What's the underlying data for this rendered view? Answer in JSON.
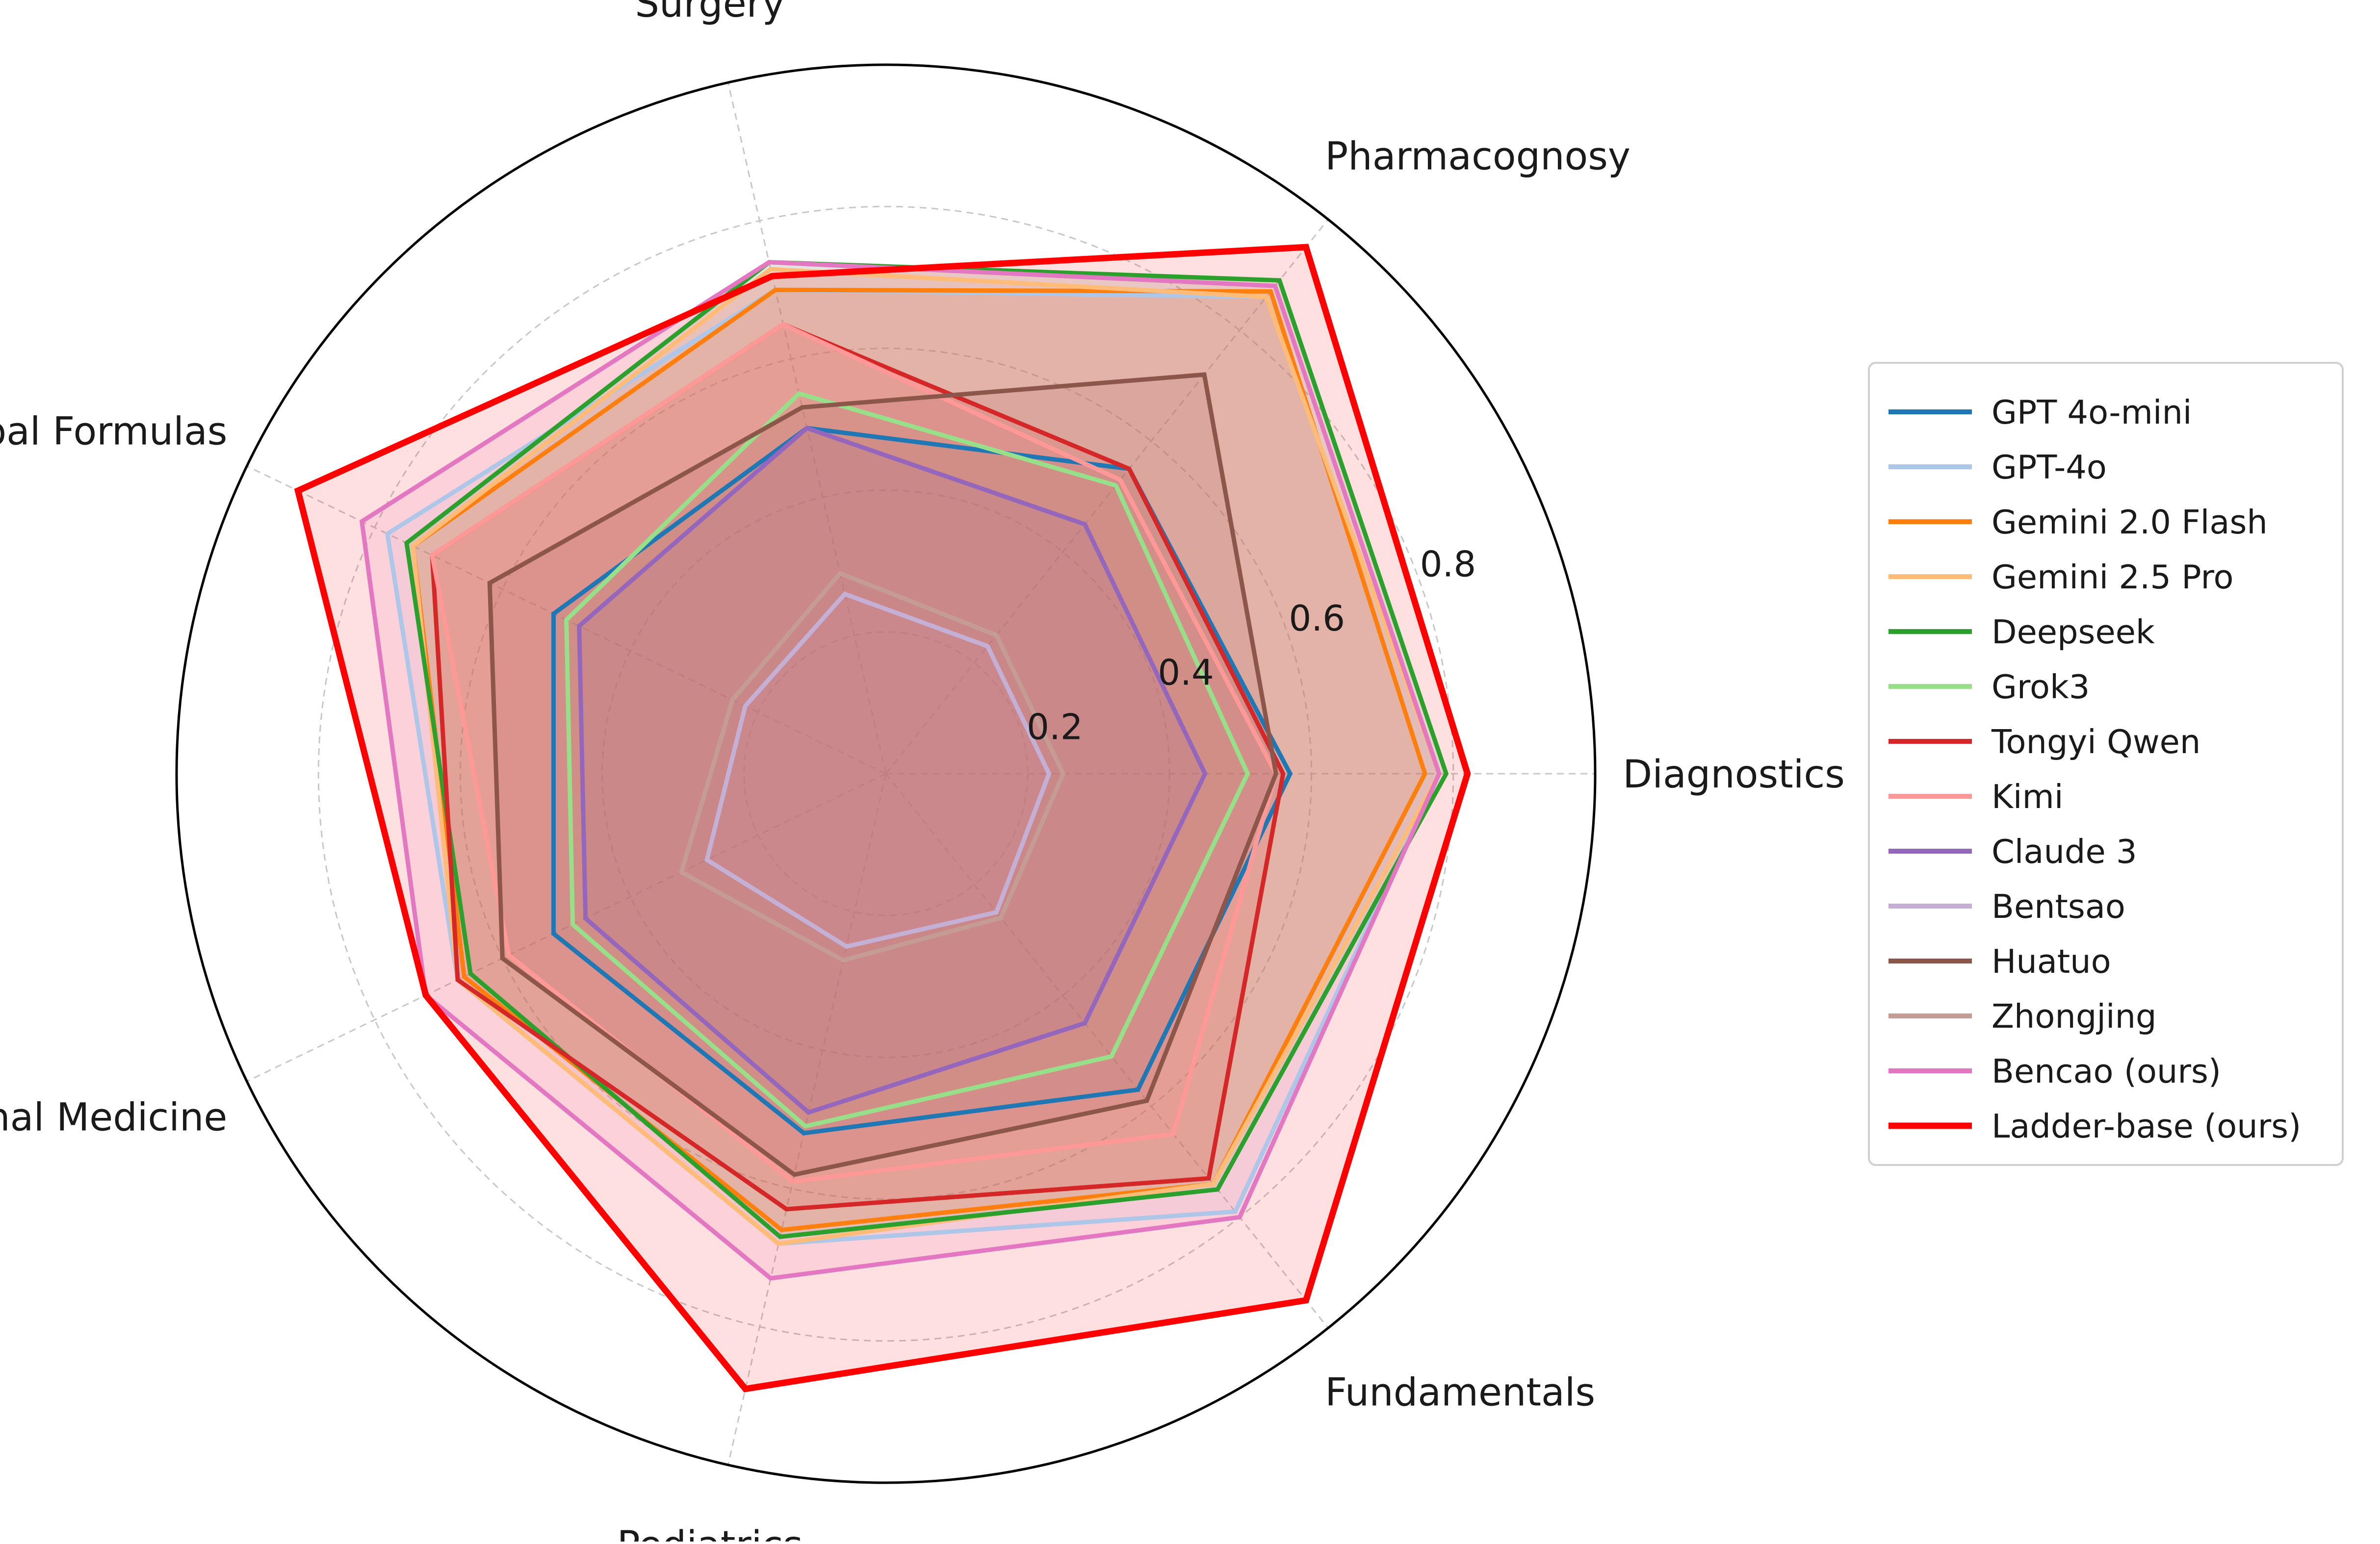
{
  "chart_data": {
    "type": "radar",
    "axes": [
      "Diagnostics",
      "Pharmacognosy",
      "Surgery",
      "Herbal Formulas",
      "Internal Medicine",
      "Pediatrics",
      "Fundamentals"
    ],
    "radial_ticks": [
      "0.2",
      "0.4",
      "0.6",
      "0.8"
    ],
    "radial_tick_values": [
      0.2,
      0.4,
      0.6,
      0.8
    ],
    "rlim": [
      0,
      1.0
    ],
    "grid": true,
    "legend_position": "right",
    "series": [
      {
        "name": "GPT 4o-mini",
        "color": "#1f77b4",
        "values": [
          0.57,
          0.55,
          0.5,
          0.52,
          0.52,
          0.52,
          0.57
        ]
      },
      {
        "name": "GPT-4o",
        "color": "#aec7e8",
        "values": [
          0.78,
          0.86,
          0.7,
          0.78,
          0.67,
          0.68,
          0.79
        ]
      },
      {
        "name": "Gemini 2.0 Flash",
        "color": "#ff7f0e",
        "values": [
          0.76,
          0.87,
          0.7,
          0.74,
          0.66,
          0.66,
          0.74
        ]
      },
      {
        "name": "Gemini 2.5 Pro",
        "color": "#ffbb78",
        "values": [
          0.78,
          0.86,
          0.73,
          0.74,
          0.67,
          0.68,
          0.74
        ]
      },
      {
        "name": "Deepseek",
        "color": "#2ca02c",
        "values": [
          0.79,
          0.89,
          0.74,
          0.75,
          0.65,
          0.67,
          0.75
        ]
      },
      {
        "name": "Grok3",
        "color": "#98df8a",
        "values": [
          0.51,
          0.52,
          0.55,
          0.5,
          0.49,
          0.51,
          0.51
        ]
      },
      {
        "name": "Tongyi Qwen",
        "color": "#d62728",
        "values": [
          0.56,
          0.55,
          0.65,
          0.71,
          0.67,
          0.63,
          0.73
        ]
      },
      {
        "name": "Kimi",
        "color": "#ff9896",
        "values": [
          0.55,
          0.53,
          0.65,
          0.71,
          0.59,
          0.59,
          0.65
        ]
      },
      {
        "name": "Claude 3",
        "color": "#9467bd",
        "values": [
          0.45,
          0.45,
          0.5,
          0.48,
          0.47,
          0.49,
          0.45
        ]
      },
      {
        "name": "Bentsao",
        "color": "#c5b0d5",
        "values": [
          0.23,
          0.23,
          0.26,
          0.22,
          0.28,
          0.25,
          0.25
        ]
      },
      {
        "name": "Huatuo",
        "color": "#8c564b",
        "values": [
          0.55,
          0.72,
          0.53,
          0.62,
          0.6,
          0.58,
          0.59
        ]
      },
      {
        "name": "Zhongjing",
        "color": "#c49c94",
        "values": [
          0.25,
          0.25,
          0.29,
          0.24,
          0.32,
          0.27,
          0.26
        ]
      },
      {
        "name": "Bencao (ours)",
        "color": "#e377c2",
        "values": [
          0.78,
          0.88,
          0.74,
          0.82,
          0.72,
          0.73,
          0.8
        ]
      },
      {
        "name": "Ladder-base (ours)",
        "color": "#ff0000",
        "values": [
          0.82,
          0.95,
          0.72,
          0.92,
          0.72,
          0.89,
          0.95
        ]
      }
    ]
  }
}
